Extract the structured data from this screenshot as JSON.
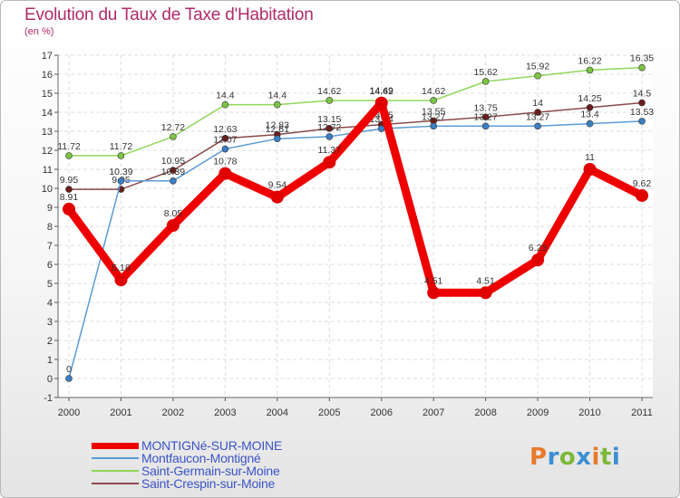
{
  "title": "Evolution du Taux de Taxe d'Habitation",
  "unit_label": "(en %)",
  "logo_text": "Proxiti",
  "logo_colors": [
    "#e8792d",
    "#3b8fd4",
    "#7cb83a",
    "#3b8fd4",
    "#e8792d",
    "#7cb83a",
    "#3b8fd4"
  ],
  "chart_data": {
    "type": "line",
    "title": "Evolution du Taux de Taxe d'Habitation",
    "ylabel": "(en %)",
    "xlabel": "",
    "x": [
      "2000",
      "2001",
      "2002",
      "2003",
      "2004",
      "2005",
      "2006",
      "2007",
      "2008",
      "2009",
      "2010",
      "2011"
    ],
    "ylim": [
      -1,
      17
    ],
    "yticks": [
      -1,
      0,
      1,
      2,
      3,
      4,
      5,
      6,
      7,
      8,
      9,
      10,
      11,
      12,
      13,
      14,
      15,
      16,
      17
    ],
    "grid": true,
    "legend_position": "bottom-left",
    "series": [
      {
        "name": "Saint-Germain-sur-Moine",
        "color": "#8fd65a",
        "marker": "#7cc443",
        "values": [
          11.72,
          11.72,
          12.72,
          14.4,
          14.4,
          14.62,
          14.62,
          14.62,
          15.62,
          15.92,
          16.22,
          16.35
        ],
        "labels": [
          "11.72",
          "11.72",
          "12.72",
          "14.4",
          "14.4",
          "14.62",
          "14.62",
          "14.62",
          "15.62",
          "15.92",
          "16.22",
          "16.35"
        ]
      },
      {
        "name": "Saint-Crespin-sur-Moine",
        "color": "#8b4a4a",
        "marker": "#6b1d1d",
        "values": [
          9.95,
          9.95,
          10.95,
          12.63,
          12.83,
          13.15,
          13.35,
          13.55,
          13.75,
          14,
          14.25,
          14.5
        ],
        "labels": [
          "9.95",
          "9.95",
          "10.95",
          "12.63",
          "12.83",
          "13.15",
          "13.35",
          "13.55",
          "13.75",
          "14",
          "14.25",
          "14.5"
        ]
      },
      {
        "name": "Montfaucon-Montigné",
        "color": "#5b9bd5",
        "marker": "#3b7fc4",
        "values": [
          0,
          10.39,
          10.39,
          12.07,
          12.61,
          12.72,
          13.14,
          13.27,
          13.27,
          13.27,
          13.4,
          13.53
        ],
        "labels": [
          "0",
          "10.39",
          "10.39",
          "12.07",
          "12.61",
          "12.72",
          "13.14",
          "13.27",
          "13.27",
          "13.27",
          "13.4",
          "13.53"
        ]
      },
      {
        "name": "MONTIGNé-SUR-MOINE",
        "color": "#ee0000",
        "marker": "#e00000",
        "values": [
          8.91,
          5.18,
          8.05,
          10.78,
          9.54,
          11.37,
          14.49,
          4.51,
          4.51,
          6.23,
          11,
          9.62
        ],
        "labels": [
          "8.91",
          "5.18",
          "8.05",
          "10.78",
          "9.54",
          "11.37",
          "14.49",
          "4.51",
          "4.51",
          "6.23",
          "11",
          "9.62"
        ]
      }
    ]
  },
  "legend": [
    {
      "label": "MONTIGNé-SUR-MOINE",
      "color": "#ee0000",
      "thick": true
    },
    {
      "label": "Montfaucon-Montigné",
      "color": "#5b9bd5",
      "thick": false
    },
    {
      "label": "Saint-Germain-sur-Moine",
      "color": "#8fd65a",
      "thick": false
    },
    {
      "label": "Saint-Crespin-sur-Moine",
      "color": "#8b4a4a",
      "thick": false
    }
  ]
}
